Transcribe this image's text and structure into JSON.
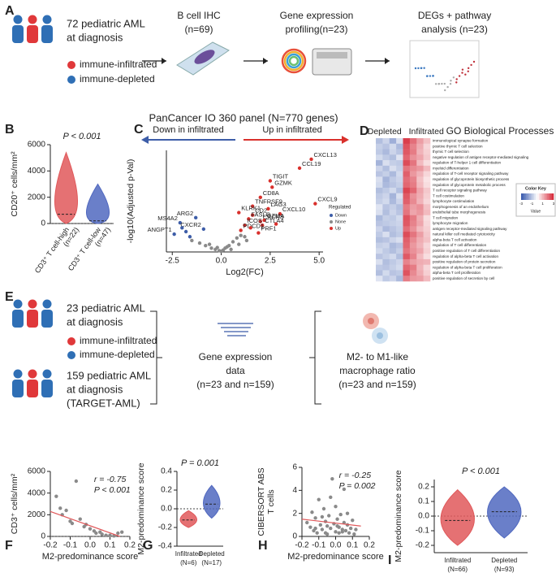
{
  "panel_labels": [
    "A",
    "B",
    "C",
    "D",
    "E",
    "F",
    "G",
    "H",
    "I"
  ],
  "panel_a": {
    "cohort": [
      "72 pediatric AML",
      "at diagnosis"
    ],
    "legend": [
      "immune-infiltrated",
      "immune-depleted"
    ],
    "steps": [
      [
        "B cell IHC",
        "(n=69)"
      ],
      [
        "Gene expression",
        "profiling(n=23)"
      ],
      [
        "DEGs + pathway",
        "analysis (n=23)"
      ]
    ]
  },
  "panel_e": {
    "cohorts": [
      [
        "23 pediatric AML",
        "at diagnosis"
      ],
      [
        "159 pediatric AML",
        "at diagnosis",
        "(TARGET-AML)"
      ]
    ],
    "legend": [
      "immune-infiltrated",
      "immune-depleted"
    ],
    "steps": [
      [
        "Gene expression",
        "data",
        "(n=23 and n=159)"
      ],
      [
        "M2- to M1-like",
        "macrophage ratio",
        "(n=23 and n=159)"
      ]
    ]
  },
  "chart_data": [
    {
      "type": "violin",
      "ylabel": "CD20⁺ cells/mm²",
      "ylim": [
        0,
        6000
      ],
      "yticks": [
        0,
        2000,
        4000,
        6000
      ],
      "categories": [
        "CD3⁺ T cell-high",
        "CD3⁺ T cell-low"
      ],
      "category_notes": [
        "(n=22)",
        "(n=47)"
      ],
      "colors": [
        "#e0585a",
        "#5068bf"
      ],
      "minima": [
        0,
        0
      ],
      "medians": [
        700,
        200
      ],
      "maxima": [
        5400,
        3000
      ],
      "annotation": "P < 0.001",
      "hline": 0
    },
    {
      "type": "volcano",
      "title": "PanCancer IO 360 panel (N=770 genes)",
      "left_arrow": "Down in infiltrated",
      "right_arrow": "Up in infiltrated",
      "xlabel": "Log2(FC)",
      "ylabel": "-log10(Adjusted p-Val)",
      "legend_title": "Regulated",
      "xlim": [
        -2.8,
        5.2
      ],
      "ylim": [
        0,
        8
      ],
      "xticks": [
        -2.5,
        {
          "value": 0,
          "label": "0.0"
        },
        2.5,
        {
          "value": 5,
          "label": "5.0"
        }
      ],
      "series": [
        {
          "name": "Down",
          "color": "#3d5da8",
          "x": [
            -1.3,
            -2.1,
            -0.9,
            -2.4,
            -1.8,
            -1.6,
            -2.0
          ],
          "y": [
            2.7,
            2.3,
            1.8,
            1.4,
            1.6,
            1.2,
            1.9
          ],
          "labels": [
            "ARG2",
            "MS4A2",
            "CXCR2",
            "ANGPT1",
            null,
            null,
            null
          ]
        },
        {
          "name": "None",
          "color": "#8a8a8a",
          "x": [
            -1.5,
            -1.1,
            -0.8,
            -0.5,
            -0.3,
            -0.1,
            0.1,
            0.2,
            0.4,
            0.6,
            0.8,
            1.0,
            1.2,
            0.3,
            -0.6,
            0.5,
            -0.2,
            0.9,
            1.3,
            0.0
          ],
          "y": [
            0.9,
            0.7,
            0.5,
            0.3,
            0.2,
            0.1,
            0.15,
            0.3,
            0.5,
            0.8,
            1.1,
            1.3,
            1.2,
            0.4,
            0.6,
            0.2,
            0.35,
            0.6,
            0.9,
            0.05
          ]
        },
        {
          "name": "Up",
          "color": "#d9302c",
          "x": [
            4.6,
            4.0,
            2.6,
            2.5,
            2.0,
            1.6,
            2.4,
            0.9,
            1.6,
            3.0,
            4.8,
            1.4,
            2.0,
            2.2,
            1.2,
            2.1,
            1.0,
            1.9,
            1.5,
            2.8
          ],
          "y": [
            7.3,
            6.6,
            5.1,
            5.6,
            4.3,
            3.6,
            3.4,
            3.1,
            2.9,
            3.0,
            3.8,
            2.6,
            2.4,
            2.5,
            2.1,
            2.1,
            1.7,
            1.5,
            1.9,
            2.2
          ],
          "labels": [
            "CXCL13",
            "CCL19",
            "GZMK",
            "TIGIT",
            "CD8A",
            "TNFRSF9",
            "LAG3",
            "KLRK1",
            "CD2",
            "CXCL10",
            "CXCL9",
            "FASLG",
            "CXCR3",
            "GZMA",
            "ICOS",
            "CTLA4",
            "PDCD1",
            "PRF1",
            null,
            null
          ]
        }
      ]
    },
    {
      "type": "heatmap",
      "column_groups": [
        "Depleted",
        "Infiltrated"
      ],
      "title": "GO Biological Processes",
      "color_key": {
        "title": "Color Key",
        "label": "Value",
        "ticks": [
          -3,
          -1,
          1,
          3
        ]
      },
      "rows": [
        "immunological synapse formation",
        "positive thymic T cell selection",
        "thymic T cell selection",
        "negative regulation of antigen receptor-mediated signaling",
        "regulation of T-helper 1 cell differentiation",
        "myeloid differentiation",
        "regulation of T-cell receptor signaling pathway",
        "regulation of glycoprotein biosynthetic process",
        "regulation of glycoprotein metabolic process",
        "T cell receptor signaling pathway",
        "T cell costimulation",
        "lymphocyte costimulation",
        "morphogenesis of an endothelium",
        "endothelial tube morphogenesis",
        "T cell migration",
        "lymphocyte migration",
        "antigen receptor-mediated signaling pathway",
        "natural killer cell mediated cytotoxicity",
        "alpha-beta T cell activation",
        "regulation of T cell differentiation",
        "positive regulation of T cell differentiation",
        "regulation of alpha-beta T cell activation",
        "positive regulation of protein secretion",
        "regulation of alpha-beta T cell proliferation",
        "alpha-beta T cell proliferation",
        "positive regulation of secretion by cell"
      ],
      "values": [
        [
          -1.2,
          -0.8,
          -1.5,
          -0.6,
          2.8,
          2.1,
          1.4,
          0.9
        ],
        [
          -0.9,
          -1.1,
          -0.7,
          -1.3,
          2.5,
          1.8,
          1.2,
          0.6
        ],
        [
          -1.0,
          -1.3,
          -0.8,
          -1.1,
          2.4,
          1.9,
          1.1,
          0.7
        ],
        [
          -0.7,
          -1.0,
          -1.2,
          -0.5,
          2.2,
          1.6,
          1.3,
          0.8
        ],
        [
          -1.4,
          -0.6,
          -0.9,
          -1.0,
          2.6,
          2.0,
          1.0,
          0.5
        ],
        [
          -0.8,
          -1.2,
          -0.6,
          -0.9,
          2.0,
          1.7,
          1.5,
          1.0
        ],
        [
          -1.1,
          -0.9,
          -1.3,
          -0.7,
          2.3,
          1.5,
          1.1,
          0.6
        ],
        [
          -0.6,
          -1.4,
          -1.0,
          -0.8,
          2.1,
          1.8,
          0.9,
          0.4
        ],
        [
          -0.7,
          -1.3,
          -1.1,
          -0.9,
          2.2,
          1.9,
          1.0,
          0.5
        ],
        [
          -1.2,
          -1.0,
          -0.7,
          -1.2,
          2.7,
          2.2,
          1.3,
          0.8
        ],
        [
          -1.0,
          -0.8,
          -1.4,
          -0.6,
          2.4,
          1.6,
          1.2,
          0.7
        ],
        [
          -0.9,
          -0.7,
          -1.3,
          -0.8,
          2.3,
          1.7,
          1.1,
          0.6
        ],
        [
          -0.5,
          -1.1,
          -0.9,
          -1.2,
          1.9,
          1.4,
          1.6,
          0.9
        ],
        [
          -0.6,
          -1.2,
          -0.8,
          -1.1,
          2.0,
          1.3,
          1.5,
          1.0
        ],
        [
          -1.3,
          -0.9,
          -1.0,
          -0.7,
          2.5,
          1.9,
          1.2,
          0.5
        ],
        [
          -1.1,
          -1.0,
          -0.9,
          -0.8,
          2.4,
          1.8,
          1.3,
          0.6
        ],
        [
          -0.8,
          -1.3,
          -1.1,
          -0.9,
          2.1,
          1.6,
          1.0,
          0.7
        ],
        [
          -1.0,
          -0.6,
          -1.2,
          -1.0,
          2.6,
          2.0,
          1.4,
          0.8
        ],
        [
          -1.2,
          -1.1,
          -0.8,
          -0.6,
          2.3,
          1.7,
          1.2,
          0.9
        ],
        [
          -0.9,
          -0.8,
          -1.3,
          -1.1,
          2.2,
          1.5,
          1.1,
          0.6
        ],
        [
          -0.7,
          -1.0,
          -1.2,
          -0.9,
          2.0,
          1.6,
          1.3,
          0.7
        ],
        [
          -1.1,
          -0.9,
          -0.7,
          -1.2,
          2.4,
          1.8,
          1.0,
          0.5
        ],
        [
          -0.6,
          -1.2,
          -1.0,
          -0.8,
          1.8,
          1.4,
          1.2,
          1.1
        ],
        [
          -1.0,
          -1.1,
          -0.9,
          -0.7,
          2.2,
          1.9,
          1.1,
          0.6
        ],
        [
          -1.2,
          -0.7,
          -1.1,
          -1.0,
          2.5,
          1.7,
          1.2,
          0.7
        ],
        [
          -0.5,
          -1.0,
          -0.8,
          -1.3,
          1.9,
          1.5,
          1.4,
          1.0
        ]
      ]
    },
    {
      "type": "scatter",
      "xlabel": "M2-predominance score",
      "ylabel": "CD3⁺ cells/mm²",
      "xlim": [
        -0.2,
        0.2
      ],
      "xticks": [
        -0.2,
        -0.1,
        {
          "value": 0,
          "label": "0.0"
        },
        0.1,
        0.2
      ],
      "ylim": [
        0,
        6000
      ],
      "yticks": [
        0,
        2000,
        4000,
        6000
      ],
      "color": "#8a8a8a",
      "hline": 0,
      "x": [
        -0.17,
        -0.15,
        -0.14,
        -0.12,
        -0.1,
        -0.09,
        -0.07,
        -0.05,
        -0.03,
        -0.02,
        0.0,
        0.02,
        0.03,
        0.05,
        0.06,
        0.08,
        0.1,
        0.12,
        0.14,
        0.16
      ],
      "y": [
        3700,
        2600,
        2000,
        2400,
        1400,
        1200,
        5100,
        1600,
        900,
        1100,
        700,
        500,
        300,
        400,
        200,
        100,
        100,
        50,
        300,
        400
      ],
      "fit": {
        "x": [
          -0.2,
          0.15
        ],
        "y": [
          2300,
          0
        ],
        "color": "#e0585a"
      },
      "annotations": [
        "r = -0.75",
        "P < 0.001"
      ]
    },
    {
      "type": "violin",
      "ylabel": "M2-predominance score",
      "ylim": [
        -0.4,
        0.4
      ],
      "yticks": [
        -0.4,
        -0.2,
        {
          "value": 0,
          "label": "0.0"
        },
        0.2,
        0.4
      ],
      "categories": [
        "Infiltrated",
        "Depleted"
      ],
      "category_notes": [
        "(N=6)",
        "(N=17)"
      ],
      "colors": [
        "#e0585a",
        "#5068bf"
      ],
      "minima": [
        -0.2,
        -0.1
      ],
      "medians": [
        -0.12,
        0.05
      ],
      "maxima": [
        -0.02,
        0.25
      ],
      "annotation": "P = 0.001",
      "hline": 0
    },
    {
      "type": "scatter",
      "xlabel": "M2-predominance score",
      "ylabel": [
        "CIBERSORT ABS",
        "T cells"
      ],
      "xlim": [
        -0.2,
        0.2
      ],
      "xticks": [
        -0.2,
        -0.1,
        {
          "value": 0,
          "label": "0.0"
        },
        0.1,
        0.2
      ],
      "ylim": [
        0,
        6
      ],
      "yticks": [
        0,
        2,
        4,
        6
      ],
      "color": "#8a8a8a",
      "x": [
        -0.17,
        -0.15,
        -0.14,
        -0.13,
        -0.12,
        -0.11,
        -0.1,
        -0.09,
        -0.08,
        -0.07,
        -0.06,
        -0.05,
        -0.05,
        -0.04,
        -0.03,
        -0.02,
        -0.01,
        0,
        0,
        0.01,
        0.02,
        0.02,
        0.03,
        0.04,
        0.05,
        0.05,
        0.06,
        0.07,
        0.08,
        0.09,
        0.1,
        0.11,
        0.12,
        -0.08,
        -0.03,
        0.01,
        0.04,
        -0.12,
        0.07,
        -0.06
      ],
      "y": [
        1.2,
        0.8,
        2.1,
        0.5,
        1.6,
        0.3,
        3.2,
        1.0,
        0.6,
        2.4,
        1.3,
        0.9,
        0.2,
        1.8,
        0.7,
        5.0,
        1.1,
        0.4,
        2.6,
        1.5,
        0.8,
        0.3,
        1.9,
        0.6,
        1.2,
        4.1,
        0.5,
        1.0,
        0.3,
        0.7,
        1.4,
        0.2,
        0.6,
        1.7,
        3.4,
        0.9,
        0.4,
        0.7,
        2.0,
        0.3
      ],
      "fit": {
        "x": [
          -0.2,
          0.15
        ],
        "y": [
          1.5,
          0.9
        ],
        "color": "#e0585a"
      },
      "annotations": [
        "r = -0.25",
        "P = 0.002"
      ]
    },
    {
      "type": "violin",
      "ylabel": "M2-predominance score",
      "ylim": [
        -0.25,
        0.25
      ],
      "yticks": [
        -0.2,
        -0.1,
        {
          "value": 0,
          "label": "0.0"
        },
        0.1,
        0.2
      ],
      "categories": [
        "Infiltrated",
        "Depleted"
      ],
      "category_notes": [
        "(N=66)",
        "(N=93)"
      ],
      "colors": [
        "#e0585a",
        "#5068bf"
      ],
      "minima": [
        -0.2,
        -0.15
      ],
      "medians": [
        -0.03,
        0.03
      ],
      "maxima": [
        0.18,
        0.2
      ],
      "annotation": "P < 0.001",
      "hline": 0
    }
  ]
}
